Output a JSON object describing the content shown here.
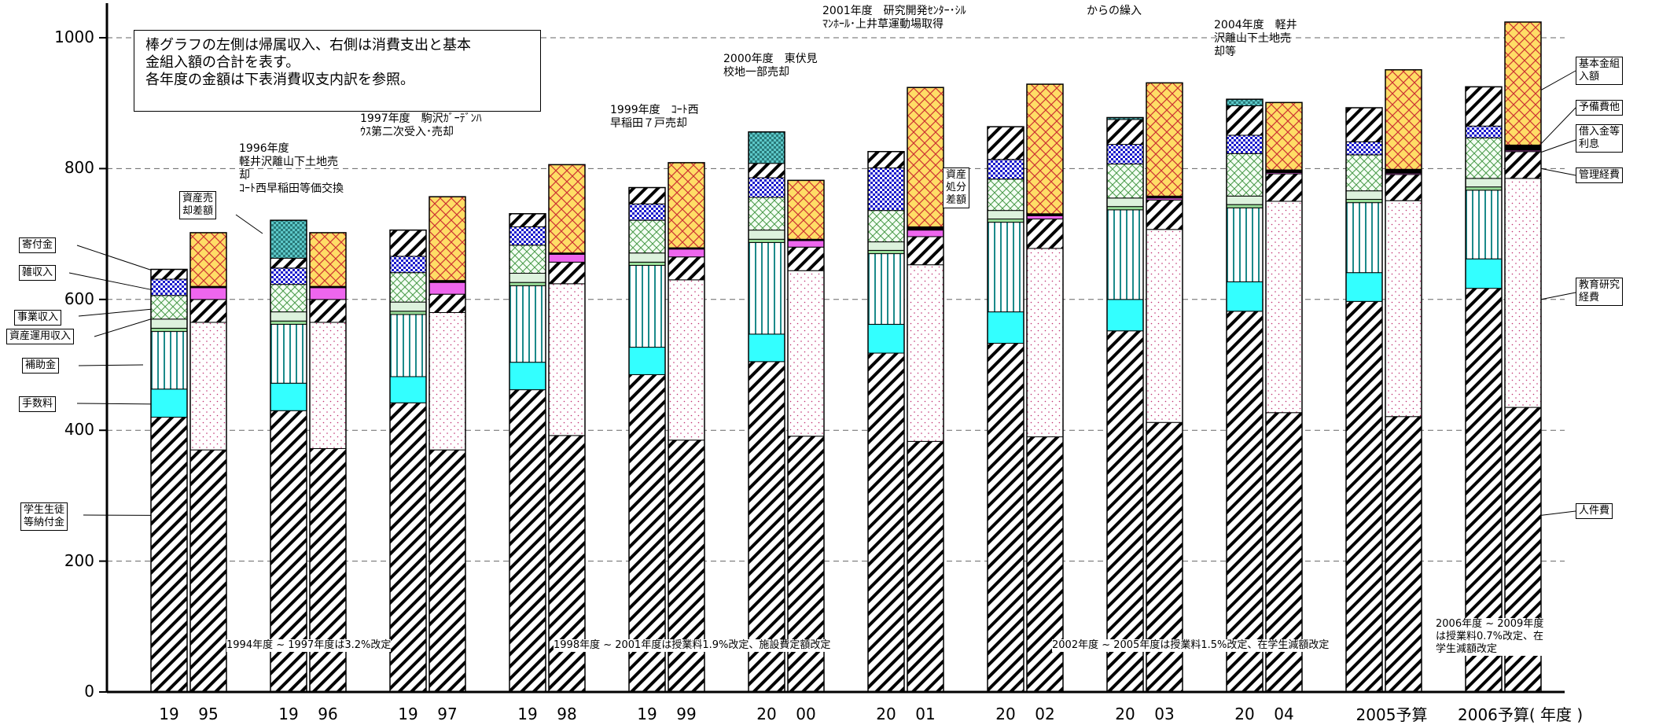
{
  "chart_data": {
    "type": "bar",
    "subtype": "stacked-paired",
    "ylim": [
      0,
      1000
    ],
    "yticks": [
      0,
      200,
      400,
      600,
      800,
      1000
    ],
    "grid": "dashed horizontal",
    "years": [
      {
        "label": [
          "19",
          "95"
        ]
      },
      {
        "label": [
          "19",
          "96"
        ]
      },
      {
        "label": [
          "19",
          "97"
        ]
      },
      {
        "label": [
          "19",
          "98"
        ]
      },
      {
        "label": [
          "19",
          "99"
        ]
      },
      {
        "label": [
          "20",
          "00"
        ]
      },
      {
        "label": [
          "20",
          "01"
        ]
      },
      {
        "label": [
          "20",
          "02"
        ]
      },
      {
        "label": [
          "20",
          "03"
        ]
      },
      {
        "label": [
          "20",
          "04"
        ]
      },
      {
        "label": [
          "2005予算"
        ]
      },
      {
        "label": [
          "2006予算( 年度 )"
        ]
      }
    ],
    "income_series": [
      {
        "name": "学生生徒等納付金",
        "color": "#ffffff",
        "pattern": "diag-heavy",
        "values": [
          420,
          430,
          442,
          462,
          485,
          505,
          518,
          533,
          552,
          582,
          597,
          617
        ]
      },
      {
        "name": "手数料",
        "color": "#33ffff",
        "pattern": "solid",
        "values": [
          43,
          42,
          40,
          42,
          42,
          42,
          44,
          48,
          48,
          45,
          44,
          45
        ]
      },
      {
        "name": "補助金",
        "color": "#ffffff",
        "pattern": "vert-teal",
        "values": [
          88,
          90,
          95,
          117,
          125,
          140,
          108,
          137,
          137,
          113,
          107,
          105
        ]
      },
      {
        "name": "資産運用収入",
        "color": "#99dd99",
        "pattern": "solid",
        "values": [
          5,
          5,
          5,
          5,
          5,
          5,
          5,
          5,
          5,
          5,
          5,
          5
        ]
      },
      {
        "name": "事業収入",
        "color": "#ddf2dd",
        "pattern": "solid",
        "values": [
          14,
          14,
          14,
          14,
          14,
          14,
          13,
          13,
          13,
          13,
          13,
          13
        ]
      },
      {
        "name": "雑収入",
        "color": "#ffffff",
        "pattern": "cross-green",
        "values": [
          36,
          42,
          45,
          43,
          50,
          50,
          48,
          48,
          52,
          65,
          55,
          62
        ]
      },
      {
        "name": "寄付金",
        "color": "#2222cc",
        "pattern": "check-blue",
        "values": [
          25,
          25,
          25,
          28,
          25,
          30,
          65,
          30,
          30,
          28,
          20,
          18
        ]
      },
      {
        "name": "資産売却差額",
        "color": "#ffffff",
        "pattern": "diag-heavy",
        "values": [
          15,
          15,
          40,
          20,
          25,
          22,
          25,
          50,
          38,
          45,
          52,
          60
        ]
      },
      {
        "name": "資産処分差額",
        "color": "#33aaaa",
        "pattern": "check-teal",
        "values": [
          0,
          58,
          0,
          0,
          0,
          48,
          0,
          0,
          3,
          10,
          0,
          0
        ]
      }
    ],
    "expense_series": [
      {
        "name": "人件費",
        "color": "#ffffff",
        "pattern": "diag-heavy",
        "values": [
          370,
          372,
          370,
          392,
          385,
          391,
          383,
          390,
          412,
          427,
          421,
          435
        ]
      },
      {
        "name": "教育研究経費",
        "color": "#ffffff",
        "pattern": "dots",
        "values": [
          195,
          193,
          210,
          232,
          245,
          253,
          270,
          288,
          295,
          323,
          330,
          350
        ]
      },
      {
        "name": "管理経費",
        "color": "#ffffff",
        "pattern": "diag-heavy",
        "values": [
          35,
          35,
          28,
          33,
          35,
          36,
          43,
          45,
          45,
          42,
          40,
          41
        ]
      },
      {
        "name": "借入金等利息",
        "color": "#ee66ee",
        "pattern": "solid",
        "values": [
          18,
          18,
          18,
          12,
          12,
          10,
          10,
          5,
          3,
          2,
          2,
          2
        ]
      },
      {
        "name": "予備費他",
        "color": "#000000",
        "pattern": "solid",
        "values": [
          2,
          2,
          3,
          2,
          2,
          2,
          5,
          3,
          3,
          4,
          6,
          8
        ]
      },
      {
        "name": "基本金組入額",
        "color": "#ffdd66",
        "pattern": "lattice-red",
        "values": [
          82,
          82,
          128,
          135,
          130,
          90,
          213,
          198,
          173,
          103,
          152,
          188
        ]
      }
    ],
    "category_labels_left": [
      "寄付金",
      "雑収入",
      "事業収入",
      "資産運用収入",
      "補助金",
      "手数料",
      "学生生徒\n等納付金",
      "資産売\n却差額"
    ],
    "category_labels_right": [
      "基本金組\n入額",
      "予備費他",
      "借入金等\n利息",
      "管理経費",
      "教育研究\n経費",
      "人件費"
    ],
    "asset_disposal_label": "資産\n処分\n差額",
    "note": "棒グラフの左側は帰属収入、右側は消費支出と基本\n金組入額の合計を表す。\n各年度の金額は下表消費収支内訳を参照。",
    "events": [
      "1996年度\n軽井沢離山下土地売\n却\nｺｰﾄ西早稲田等価交換",
      "1997年度　駒沢ｶﾞｰﾃﾞﾝﾊ\nｳｽ第二次受入･売却",
      "1999年度　ｺｰﾄ西\n早稲田７戸売却",
      "2000年度　東伏見\n校地一部売却",
      "2001年度　研究開発ｾﾝﾀｰ･ｼﾙ\nﾏﾝﾎｰﾙ･上井草運動場取得",
      "からの繰入",
      "2004年度　軽井\n沢離山下土地売\n却等"
    ],
    "tuition_notes": [
      "1994年度 ~ 1997年度は3.2%改定",
      "1998年度 ~ 2001年度は授業料1.9%改定、施設費定額改定",
      "2002年度 ~ 2005年度は授業料1.5%改定、在学生減額改定",
      "2006年度 ~ 2009年度\nは授業料0.7%改定、在\n学生減額改定"
    ]
  }
}
